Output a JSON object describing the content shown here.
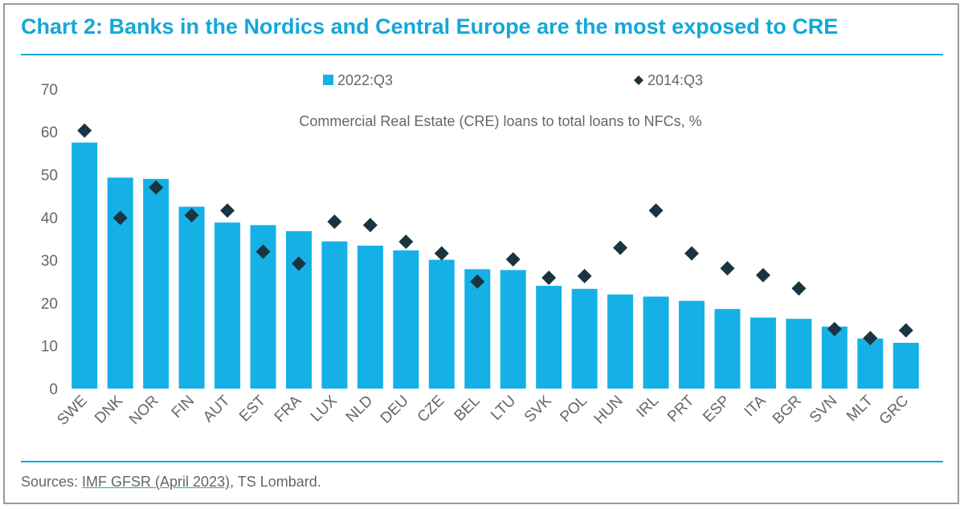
{
  "title": "Chart 2: Banks in the Nordics and Central Europe are the most exposed to CRE",
  "source": {
    "prefix": "Sources: ",
    "link_text": "IMF GFSR (April 2023)",
    "suffix": ", TS Lombard."
  },
  "colors": {
    "accent": "#13a8d8",
    "bar": "#15b1e6",
    "marker": "#1b3442",
    "text": "#666666"
  },
  "chart_data": {
    "type": "bar",
    "title": "",
    "subtitle": "Commercial Real Estate (CRE) loans to total loans to NFCs, %",
    "xlabel": "",
    "ylabel": "",
    "ylim": [
      0,
      70
    ],
    "yticks": [
      0,
      10,
      20,
      30,
      40,
      50,
      60,
      70
    ],
    "grid": false,
    "legend_position": "top",
    "categories": [
      "SWE",
      "DNK",
      "NOR",
      "FIN",
      "AUT",
      "EST",
      "FRA",
      "LUX",
      "NLD",
      "DEU",
      "CZE",
      "BEL",
      "LTU",
      "SVK",
      "POL",
      "HUN",
      "IRL",
      "PRT",
      "ESP",
      "ITA",
      "BGR",
      "SVN",
      "MLT",
      "GRC"
    ],
    "series": [
      {
        "name": "2022:Q3",
        "kind": "bar",
        "values": [
          57.5,
          49.3,
          49.0,
          42.5,
          38.8,
          38.2,
          36.8,
          34.4,
          33.4,
          32.3,
          30.1,
          27.9,
          27.7,
          24.0,
          23.3,
          22.0,
          21.5,
          20.5,
          18.6,
          16.6,
          16.3,
          14.5,
          11.7,
          10.7
        ]
      },
      {
        "name": "2014:Q3",
        "kind": "marker",
        "values": [
          60.3,
          39.9,
          47.0,
          40.5,
          41.6,
          32.0,
          29.2,
          39.0,
          38.2,
          34.3,
          31.6,
          25.0,
          30.2,
          25.9,
          26.3,
          32.9,
          41.6,
          31.6,
          28.1,
          26.5,
          23.4,
          13.9,
          11.8,
          13.6
        ]
      }
    ]
  }
}
